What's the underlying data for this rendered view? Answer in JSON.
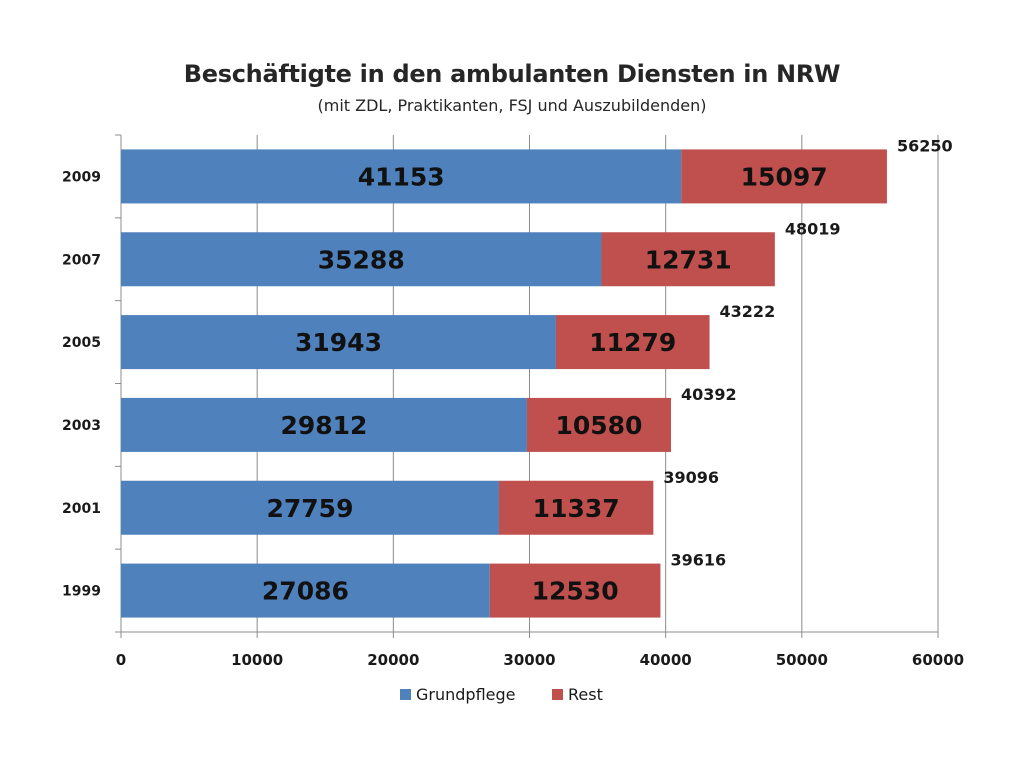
{
  "chart_data": {
    "type": "bar",
    "orientation": "horizontal",
    "stacked": true,
    "title": "Beschäftigte in den ambulanten Diensten in NRW",
    "subtitle": "(mit ZDL, Praktikanten, FSJ und Auszubildenden)",
    "categories": [
      "2009",
      "2007",
      "2005",
      "2003",
      "2001",
      "1999"
    ],
    "series": [
      {
        "name": "Grundpflege",
        "color": "#4F81BD",
        "values": [
          41153,
          35288,
          31943,
          29812,
          27759,
          27086
        ]
      },
      {
        "name": "Rest",
        "color": "#C0504D",
        "values": [
          15097,
          12731,
          11279,
          10580,
          11337,
          12530
        ]
      }
    ],
    "totals": [
      56250,
      48019,
      43222,
      40392,
      39096,
      39616
    ],
    "xlim": [
      0,
      60000
    ],
    "xticks": [
      "0",
      "10000",
      "20000",
      "30000",
      "40000",
      "50000",
      "60000"
    ],
    "grid": true,
    "legend_position": "bottom"
  }
}
